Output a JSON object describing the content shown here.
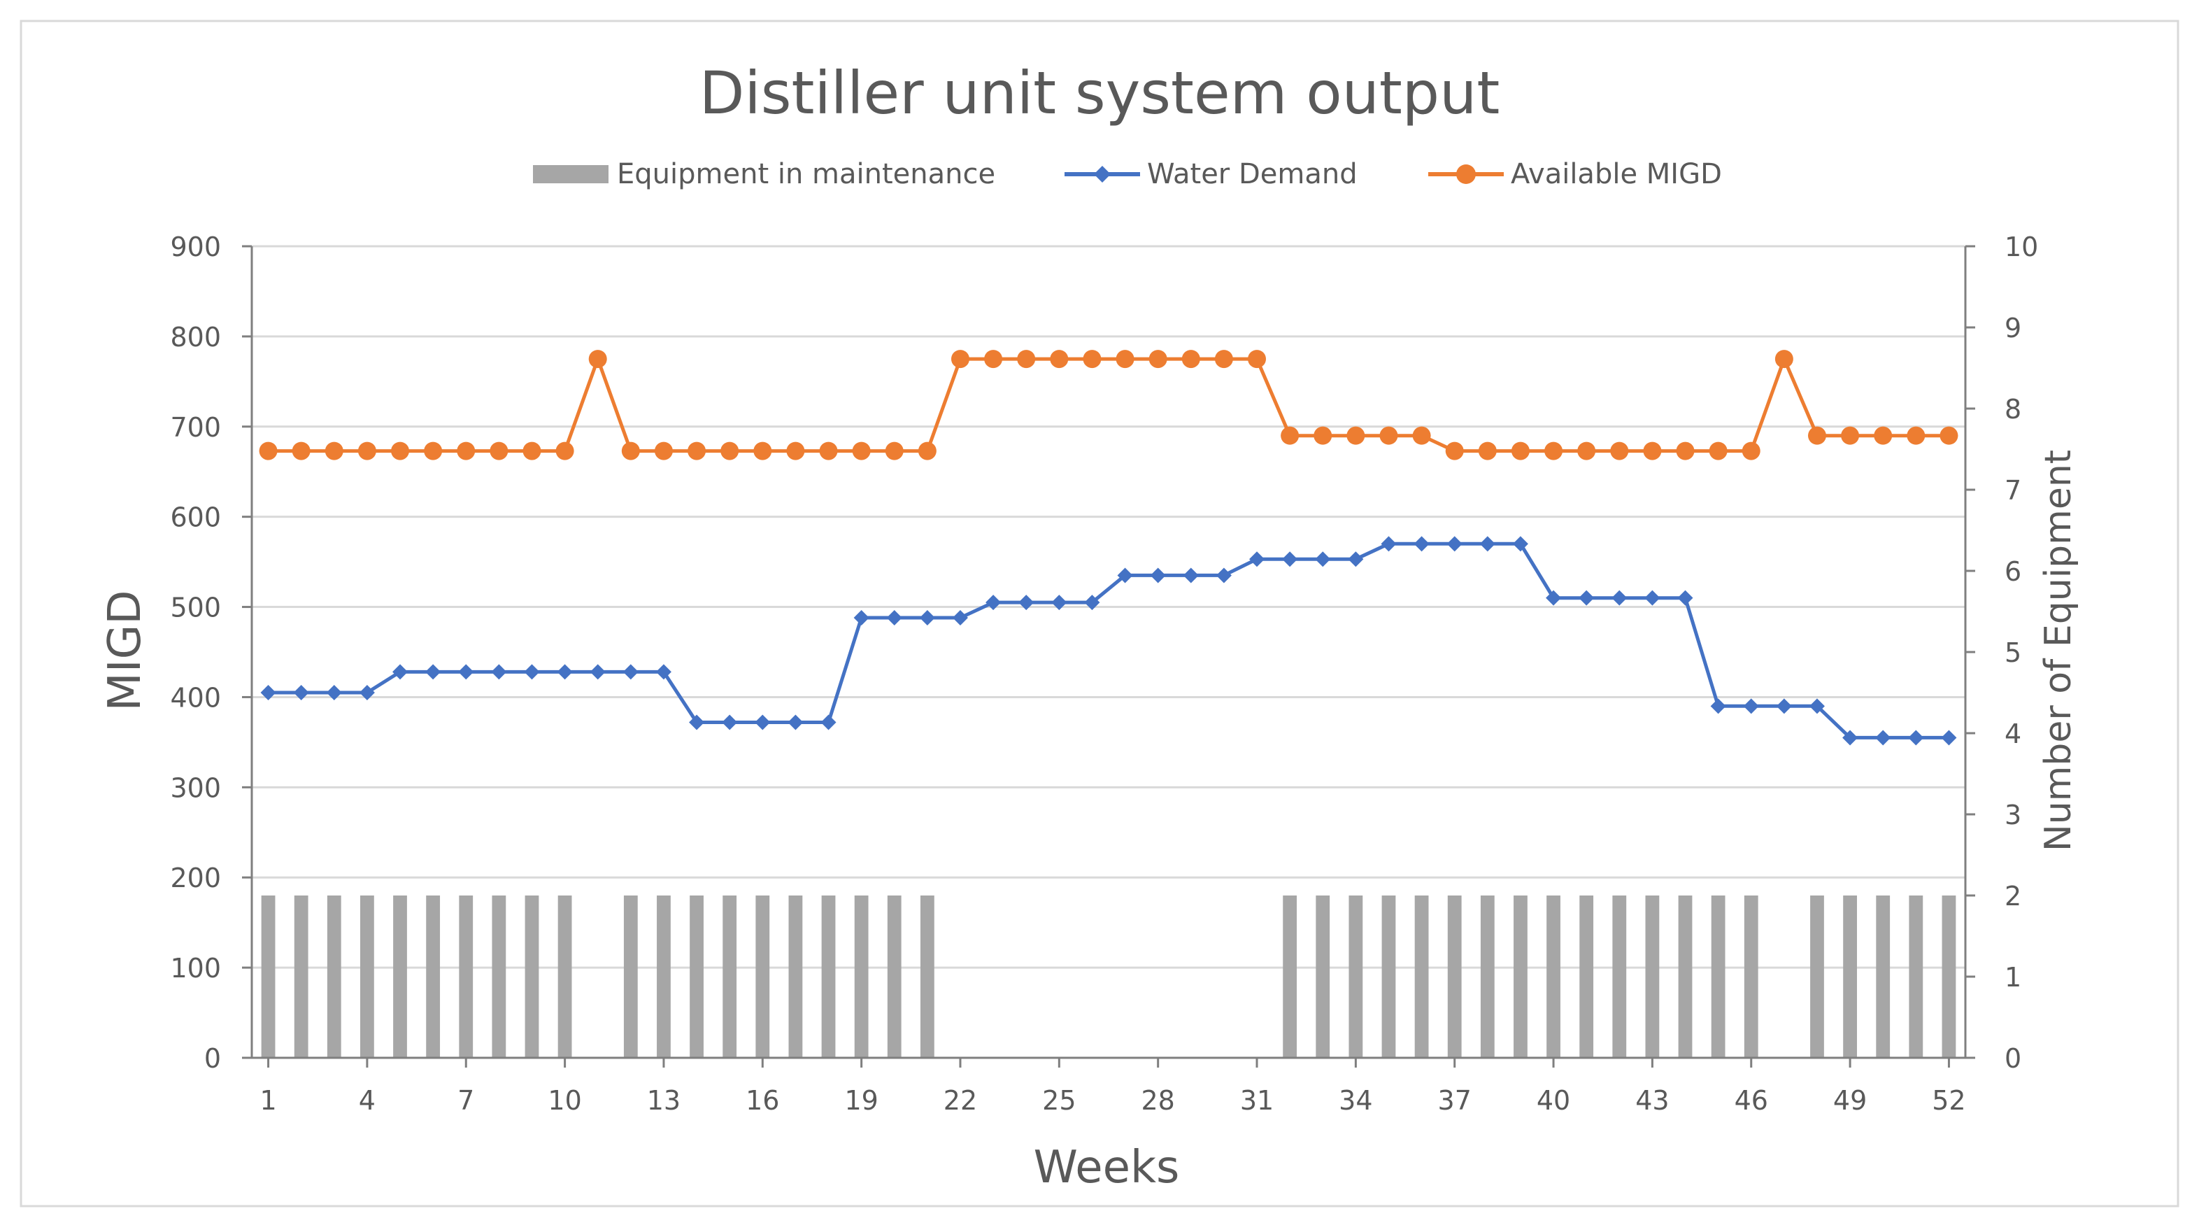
{
  "chart_data": {
    "type": "bar+line",
    "title": "Distiller unit system output",
    "xlabel": "Weeks",
    "ylabel_left": "MIGD",
    "ylabel_right": "Number of Equipment",
    "y_left_range": [
      0,
      900
    ],
    "y_left_ticks": [
      0,
      100,
      200,
      300,
      400,
      500,
      600,
      700,
      800,
      900
    ],
    "y_right_range": [
      0,
      10
    ],
    "y_right_ticks": [
      0,
      1,
      2,
      3,
      4,
      5,
      6,
      7,
      8,
      9,
      10
    ],
    "x_tick_labels": [
      "1",
      "4",
      "7",
      "10",
      "13",
      "16",
      "19",
      "22",
      "25",
      "28",
      "31",
      "34",
      "37",
      "40",
      "43",
      "46",
      "49",
      "52"
    ],
    "grid": "horizontal",
    "legend_position": "top",
    "weeks": [
      1,
      2,
      3,
      4,
      5,
      6,
      7,
      8,
      9,
      10,
      11,
      12,
      13,
      14,
      15,
      16,
      17,
      18,
      19,
      20,
      21,
      22,
      23,
      24,
      25,
      26,
      27,
      28,
      29,
      30,
      31,
      32,
      33,
      34,
      35,
      36,
      37,
      38,
      39,
      40,
      41,
      42,
      43,
      44,
      45,
      46,
      47,
      48,
      49,
      50,
      51,
      52
    ],
    "series": [
      {
        "name": "Equipment in maintenance",
        "type": "bar",
        "axis": "right",
        "color": "#a6a6a6",
        "values": [
          2,
          2,
          2,
          2,
          2,
          2,
          2,
          2,
          2,
          2,
          0,
          2,
          2,
          2,
          2,
          2,
          2,
          2,
          2,
          2,
          2,
          0,
          0,
          0,
          0,
          0,
          0,
          0,
          0,
          0,
          0,
          2,
          2,
          2,
          2,
          2,
          2,
          2,
          2,
          2,
          2,
          2,
          2,
          2,
          2,
          2,
          0,
          2,
          2,
          2,
          2,
          2
        ]
      },
      {
        "name": "Water Demand",
        "type": "line",
        "marker": "diamond",
        "axis": "left",
        "color": "#4472c4",
        "values": [
          405,
          405,
          405,
          405,
          428,
          428,
          428,
          428,
          428,
          428,
          428,
          428,
          428,
          372,
          372,
          372,
          372,
          372,
          488,
          488,
          488,
          488,
          505,
          505,
          505,
          505,
          535,
          535,
          535,
          535,
          553,
          553,
          553,
          553,
          570,
          570,
          570,
          570,
          570,
          510,
          510,
          510,
          510,
          510,
          390,
          390,
          390,
          390,
          355,
          355,
          355,
          355
        ]
      },
      {
        "name": "Available MIGD",
        "type": "line",
        "marker": "circle",
        "axis": "left",
        "color": "#ed7d31",
        "values": [
          673,
          673,
          673,
          673,
          673,
          673,
          673,
          673,
          673,
          673,
          775,
          673,
          673,
          673,
          673,
          673,
          673,
          673,
          673,
          673,
          673,
          775,
          775,
          775,
          775,
          775,
          775,
          775,
          775,
          775,
          775,
          690,
          690,
          690,
          690,
          690,
          673,
          673,
          673,
          673,
          673,
          673,
          673,
          673,
          673,
          673,
          775,
          690,
          690,
          690,
          690,
          690
        ]
      }
    ]
  }
}
